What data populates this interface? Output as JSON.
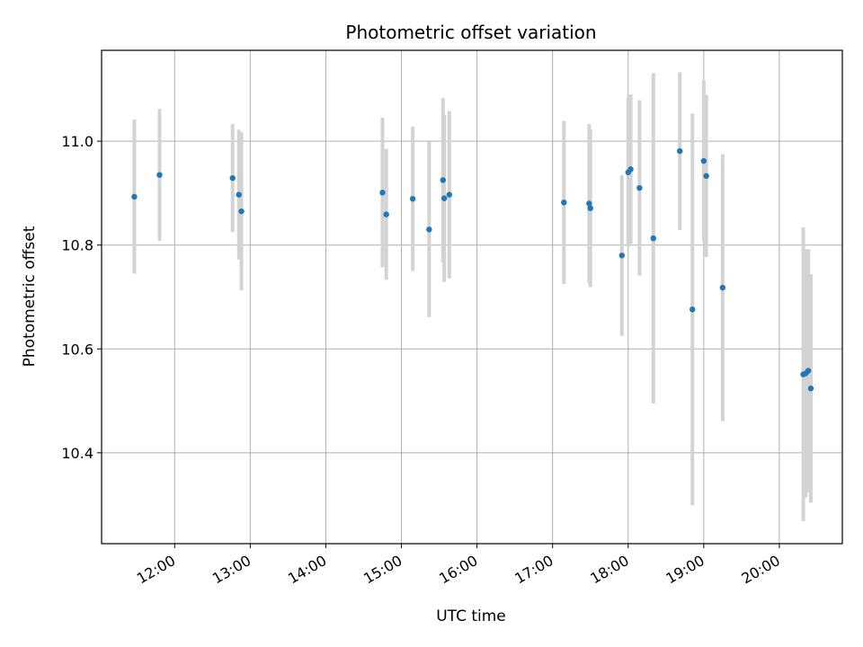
{
  "chart_data": {
    "type": "scatter",
    "title": "Photometric offset variation",
    "xlabel": "UTC time",
    "ylabel": "Photometric offset",
    "x_tick_labels": [
      "12:00",
      "13:00",
      "14:00",
      "15:00",
      "16:00",
      "17:00",
      "18:00",
      "19:00",
      "20:00"
    ],
    "x_tick_hours": [
      12,
      13,
      14,
      15,
      16,
      17,
      18,
      19,
      20
    ],
    "y_ticks": [
      10.4,
      10.6,
      10.8,
      11.0
    ],
    "y_tick_labels": [
      "10.4",
      "10.6",
      "10.8",
      "11.0"
    ],
    "xlim": [
      "11:02",
      "20:50"
    ],
    "ylim": [
      10.225,
      11.175
    ],
    "grid": true,
    "colors": {
      "point": "#1f77b4",
      "errorbar": "#d3d3d3",
      "grid": "#b0b0b0"
    },
    "points": [
      {
        "t": "11:28",
        "y": 10.893,
        "lo": 10.745,
        "hi": 11.042
      },
      {
        "t": "11:48",
        "y": 10.935,
        "lo": 10.808,
        "hi": 11.062
      },
      {
        "t": "12:46",
        "y": 10.929,
        "lo": 10.825,
        "hi": 11.033
      },
      {
        "t": "12:51",
        "y": 10.897,
        "lo": 10.772,
        "hi": 11.022
      },
      {
        "t": "12:53",
        "y": 10.865,
        "lo": 10.713,
        "hi": 11.017
      },
      {
        "t": "14:45",
        "y": 10.901,
        "lo": 10.757,
        "hi": 11.045
      },
      {
        "t": "14:48",
        "y": 10.859,
        "lo": 10.733,
        "hi": 10.985
      },
      {
        "t": "15:09",
        "y": 10.889,
        "lo": 10.75,
        "hi": 11.028
      },
      {
        "t": "15:22",
        "y": 10.83,
        "lo": 10.661,
        "hi": 10.999
      },
      {
        "t": "15:33",
        "y": 10.925,
        "lo": 10.767,
        "hi": 11.083
      },
      {
        "t": "15:34",
        "y": 10.89,
        "lo": 10.729,
        "hi": 11.051
      },
      {
        "t": "15:38",
        "y": 10.897,
        "lo": 10.736,
        "hi": 11.058
      },
      {
        "t": "17:09",
        "y": 10.882,
        "lo": 10.725,
        "hi": 11.039
      },
      {
        "t": "17:29",
        "y": 10.88,
        "lo": 10.727,
        "hi": 11.033
      },
      {
        "t": "17:30",
        "y": 10.871,
        "lo": 10.719,
        "hi": 11.023
      },
      {
        "t": "17:55",
        "y": 10.78,
        "lo": 10.625,
        "hi": 10.935
      },
      {
        "t": "18:00",
        "y": 10.94,
        "lo": 10.797,
        "hi": 11.083
      },
      {
        "t": "18:02",
        "y": 10.946,
        "lo": 10.802,
        "hi": 11.09
      },
      {
        "t": "18:09",
        "y": 10.91,
        "lo": 10.741,
        "hi": 11.079
      },
      {
        "t": "18:20",
        "y": 10.813,
        "lo": 10.495,
        "hi": 11.131
      },
      {
        "t": "18:41",
        "y": 10.981,
        "lo": 10.829,
        "hi": 11.133
      },
      {
        "t": "18:51",
        "y": 10.676,
        "lo": 10.299,
        "hi": 11.053
      },
      {
        "t": "19:00",
        "y": 10.962,
        "lo": 10.807,
        "hi": 11.117
      },
      {
        "t": "19:02",
        "y": 10.933,
        "lo": 10.777,
        "hi": 11.089
      },
      {
        "t": "19:15",
        "y": 10.718,
        "lo": 10.461,
        "hi": 10.975
      },
      {
        "t": "20:19",
        "y": 10.551,
        "lo": 10.268,
        "hi": 10.834
      },
      {
        "t": "20:21",
        "y": 10.553,
        "lo": 10.314,
        "hi": 10.792
      },
      {
        "t": "20:23",
        "y": 10.558,
        "lo": 10.324,
        "hi": 10.792
      },
      {
        "t": "20:25",
        "y": 10.524,
        "lo": 10.304,
        "hi": 10.744
      }
    ]
  }
}
